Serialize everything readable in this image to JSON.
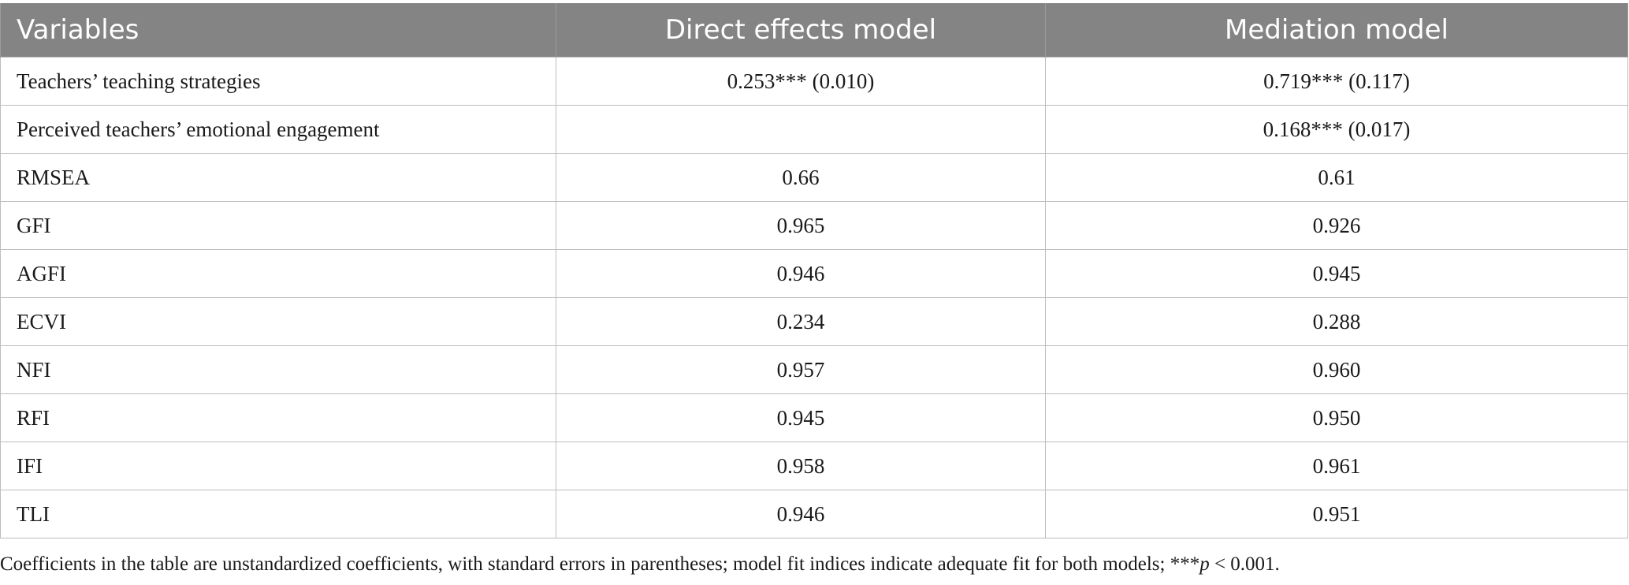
{
  "table": {
    "headers": [
      "Variables",
      "Direct effects model",
      "Mediation model"
    ],
    "rows": [
      {
        "label": "Teachers’ teaching strategies",
        "direct": "0.253*** (0.010)",
        "mediation": "0.719*** (0.117)"
      },
      {
        "label": "Perceived teachers’ emotional engagement",
        "direct": "",
        "mediation": "0.168*** (0.017)"
      },
      {
        "label": "RMSEA",
        "direct": "0.66",
        "mediation": "0.61"
      },
      {
        "label": "GFI",
        "direct": "0.965",
        "mediation": "0.926"
      },
      {
        "label": "AGFI",
        "direct": "0.946",
        "mediation": "0.945"
      },
      {
        "label": "ECVI",
        "direct": "0.234",
        "mediation": "0.288"
      },
      {
        "label": "NFI",
        "direct": "0.957",
        "mediation": "0.960"
      },
      {
        "label": "RFI",
        "direct": "0.945",
        "mediation": "0.950"
      },
      {
        "label": "IFI",
        "direct": "0.958",
        "mediation": "0.961"
      },
      {
        "label": "TLI",
        "direct": "0.946",
        "mediation": "0.951"
      }
    ]
  },
  "footnote": {
    "text": "Coefficients in the table are unstandardized coefficients, with standard errors in parentheses; model fit indices indicate adequate fit for both models; ***",
    "p_symbol": "p",
    "tail": " < 0.001."
  }
}
